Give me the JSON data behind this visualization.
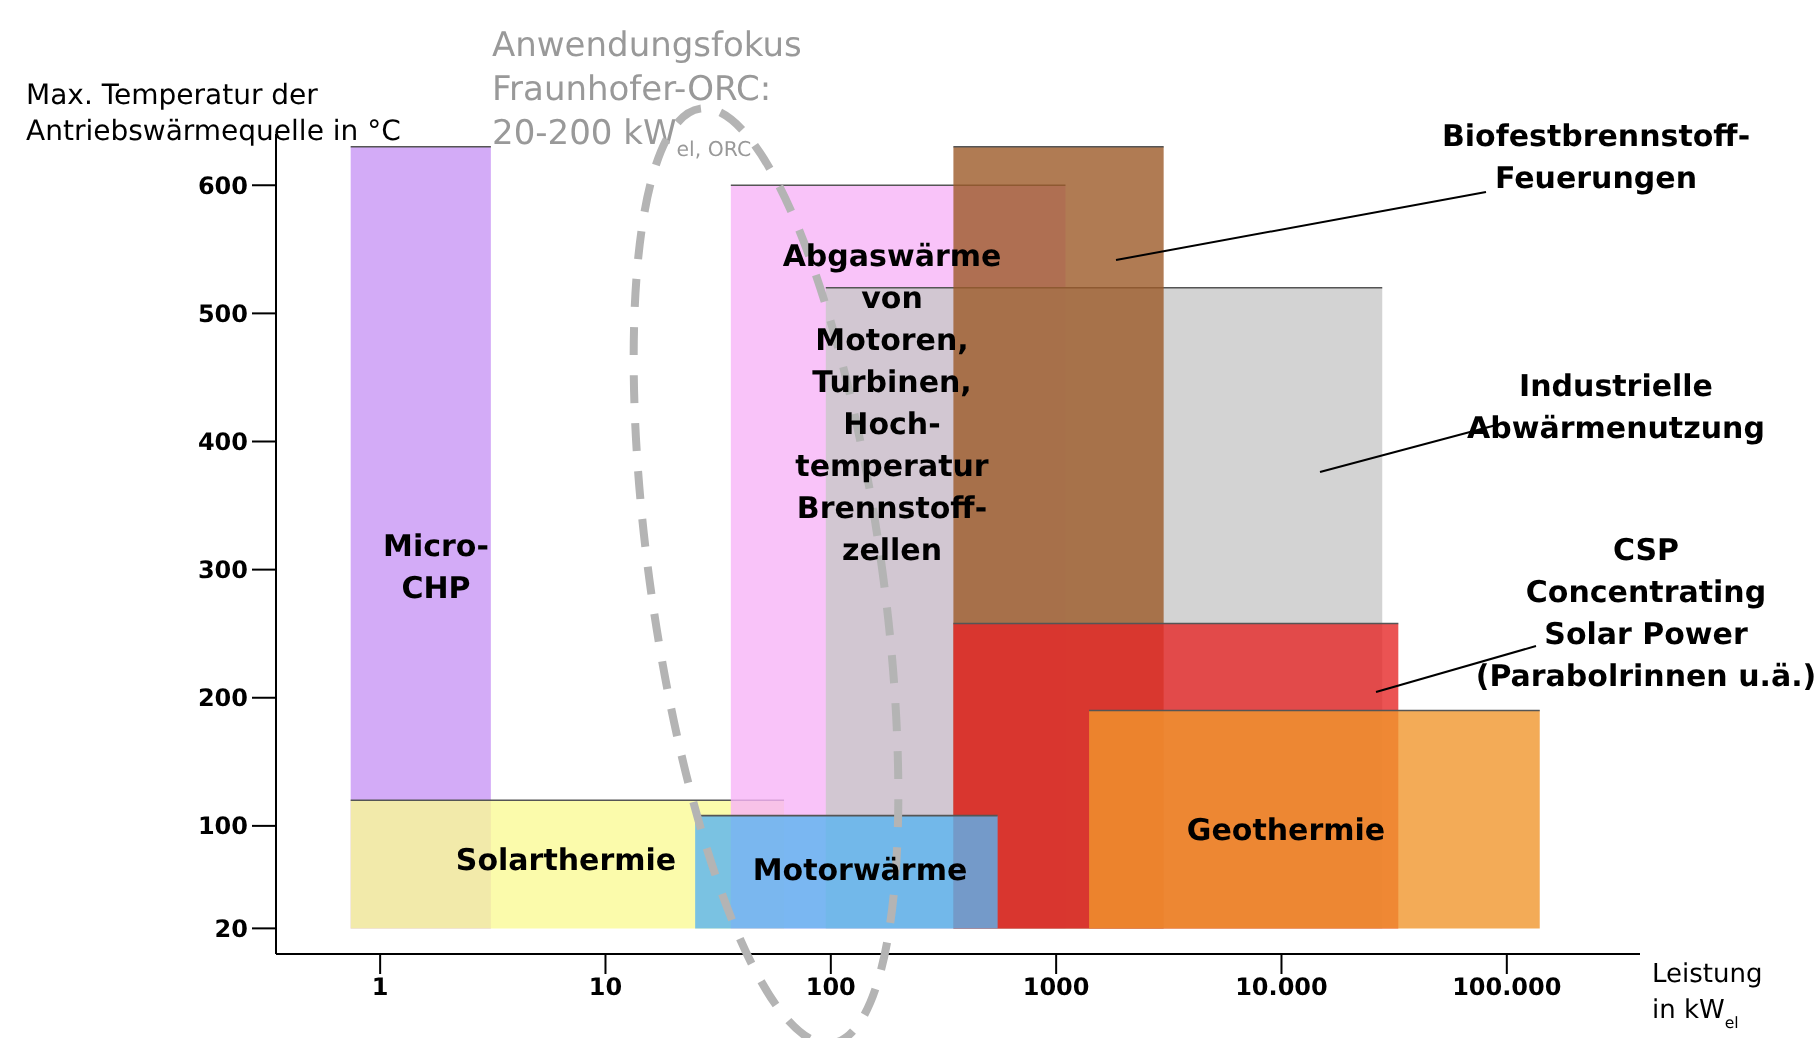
{
  "chart_data": {
    "type": "area",
    "ylabel": "Max. Temperatur der\nAntriebswärmequelle in °C",
    "xlabel": "Leistung\nin kW$_{el}$",
    "annotations": [
      "Anwendungsfokus\nFraunhofer-ORC:\n20-200 kW$_{el, ORC}$"
    ],
    "log": "x",
    "xlim": [
      0.345,
      390000
    ],
    "xticks": [
      1,
      10,
      100,
      1000,
      {
        "value": 10000,
        "label": "10.000"
      },
      {
        "value": 100000,
        "label": "100.000"
      }
    ],
    "ylim": [
      0,
      640
    ],
    "yticks": [
      20,
      100,
      200,
      300,
      400,
      500,
      600
    ],
    "series": [
      {
        "name": "Micro-\nCHP",
        "color": "#c896f5",
        "x": [
          0.74,
          3.1
        ],
        "values": [
          630,
          630
        ]
      },
      {
        "name": "Solarthermie",
        "color": "#fafa96",
        "x": [
          0.74,
          62
        ],
        "values": [
          120,
          120
        ]
      },
      {
        "name": "Abgaswärme\nvon\nMotoren,\nTurbinen,\nHoch-\ntemperatur\nBrennstoff-\nzellen",
        "color": "#f8b4f8",
        "x": [
          36,
          1100
        ],
        "values": [
          600,
          600
        ]
      },
      {
        "name": "Industrielle\nAbwärmenutzung",
        "color": "#c8c8c8",
        "x": [
          95,
          28000
        ],
        "values": [
          520,
          520
        ]
      },
      {
        "name": "Biofestbrennstoff-\nFeuerungen",
        "color": "#9c5a28",
        "x": [
          350,
          3000
        ],
        "values": [
          630,
          630
        ]
      },
      {
        "name": "CSP\nConcentrating\nSolar Power\n(Parabolrinnen u.ä.)",
        "color": "#e62828",
        "x": [
          350,
          33000
        ],
        "values": [
          258,
          258
        ]
      },
      {
        "name": "Motorwärme",
        "color": "#5ab4f0",
        "x": [
          25,
          550
        ],
        "values": [
          108,
          108
        ]
      },
      {
        "name": "Geothermie",
        "color": "#f0962d",
        "x": [
          1400,
          140000
        ],
        "values": [
          190,
          190
        ]
      }
    ]
  }
}
